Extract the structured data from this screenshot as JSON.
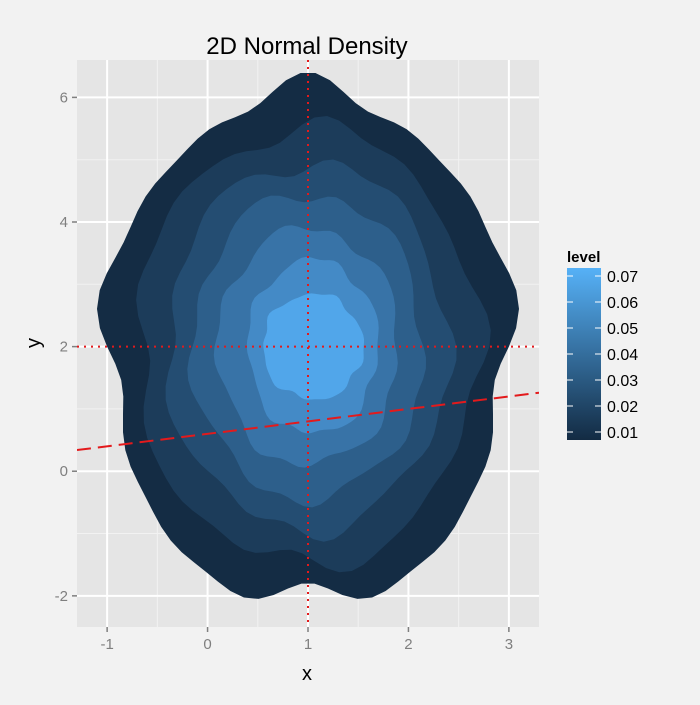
{
  "chart_data": {
    "type": "contour",
    "title": "2D Normal Density",
    "xlabel": "x",
    "ylabel": "y",
    "xlim": [
      -1.3,
      3.3
    ],
    "ylim": [
      -2.5,
      6.6
    ],
    "x_ticks": [
      -1,
      0,
      1,
      2,
      3
    ],
    "x_tick_labels": [
      "-1",
      "0",
      "1",
      "2",
      "3"
    ],
    "y_ticks": [
      -2,
      0,
      2,
      4,
      6
    ],
    "y_tick_labels": [
      "-2",
      "0",
      "2",
      "4",
      "6"
    ],
    "grid": true,
    "legend": {
      "title": "level",
      "position": "right",
      "breaks": [
        "0.07",
        "0.06",
        "0.05",
        "0.04",
        "0.03",
        "0.02",
        "0.01"
      ],
      "break_values": [
        0.07,
        0.06,
        0.05,
        0.04,
        0.03,
        0.02,
        0.01
      ],
      "low_color": "#132b43",
      "high_color": "#56b1f7"
    },
    "contours": [
      {
        "level": 0.01,
        "color": "#142c44",
        "cx": 1.0,
        "cy": 2.0,
        "rx": 2.0,
        "ry": 4.1
      },
      {
        "level": 0.02,
        "color": "#1c3c5a",
        "cx": 1.0,
        "cy": 2.0,
        "rx": 1.7,
        "ry": 3.5
      },
      {
        "level": 0.03,
        "color": "#244d72",
        "cx": 1.0,
        "cy": 2.0,
        "rx": 1.4,
        "ry": 2.95
      },
      {
        "level": 0.04,
        "color": "#2d5f8b",
        "cx": 1.0,
        "cy": 2.0,
        "rx": 1.15,
        "ry": 2.45
      },
      {
        "level": 0.05,
        "color": "#3873a7",
        "cx": 1.0,
        "cy": 2.0,
        "rx": 0.9,
        "ry": 1.9
      },
      {
        "level": 0.06,
        "color": "#448ac6",
        "cx": 1.05,
        "cy": 2.0,
        "rx": 0.65,
        "ry": 1.4
      },
      {
        "level": 0.07,
        "color": "#51a6ea",
        "cx": 1.05,
        "cy": 2.0,
        "rx": 0.5,
        "ry": 0.85
      }
    ],
    "reference_lines": [
      {
        "kind": "vertical",
        "x": 1,
        "style": "dotted",
        "color": "#e31a1c"
      },
      {
        "kind": "horizontal",
        "y": 2,
        "style": "dotted",
        "color": "#e31a1c"
      },
      {
        "kind": "abline",
        "intercept": 0.6,
        "slope": 0.2,
        "style": "dashed",
        "color": "#e31a1c"
      }
    ],
    "colors": {
      "panel_background": "#e5e5e5",
      "page_background": "#f2f2f2",
      "grid_major": "#ffffff",
      "grid_minor": "#f2f2f2",
      "tick_text": "#7f7f7f"
    }
  }
}
